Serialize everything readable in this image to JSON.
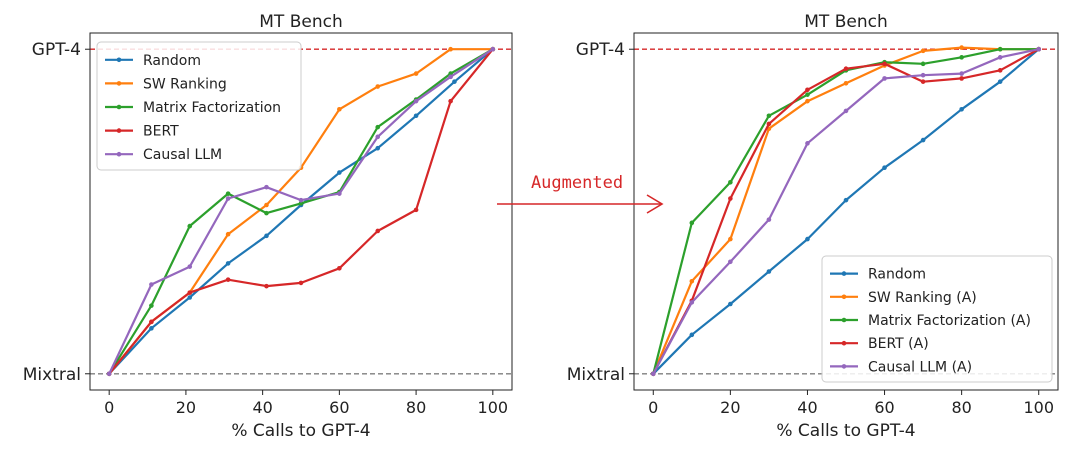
{
  "arrow": {
    "label": "Augmented",
    "color": "#d62728"
  },
  "reference_lines": {
    "top": {
      "label": "GPT-4",
      "color": "#d62728"
    },
    "bottom": {
      "label": "Mixtral",
      "color": "#7f7f7f"
    }
  },
  "chart_data": [
    {
      "type": "line",
      "title": "MT Bench",
      "xlabel": "% Calls to GPT-4",
      "ylabel": "",
      "xlim": [
        -5,
        105
      ],
      "ylim": [
        -0.05,
        1.05
      ],
      "xticks": [
        0,
        20,
        40,
        60,
        80,
        100
      ],
      "yticks": [
        {
          "value": 0,
          "label": "Mixtral"
        },
        {
          "value": 1,
          "label": "GPT-4"
        }
      ],
      "grid": false,
      "legend": "top-left",
      "series": [
        {
          "name": "Random",
          "color": "#1f77b4",
          "x": [
            0,
            11,
            21,
            31,
            41,
            50,
            60,
            70,
            80,
            90,
            100
          ],
          "y": [
            0,
            0.14,
            0.235,
            0.34,
            0.425,
            0.52,
            0.62,
            0.695,
            0.795,
            0.9,
            1.0
          ]
        },
        {
          "name": "SW Ranking",
          "color": "#ff7f0e",
          "x": [
            0,
            11,
            21,
            31,
            41,
            50,
            60,
            70,
            80,
            89,
            100
          ],
          "y": [
            0,
            0.16,
            0.25,
            0.43,
            0.52,
            0.635,
            0.815,
            0.885,
            0.925,
            1.0,
            1.0
          ]
        },
        {
          "name": "Matrix Factorization",
          "color": "#2ca02c",
          "x": [
            0,
            11,
            21,
            31,
            41,
            50,
            60,
            70,
            80,
            89,
            100
          ],
          "y": [
            0,
            0.21,
            0.455,
            0.555,
            0.495,
            0.525,
            0.56,
            0.76,
            0.845,
            0.925,
            1.0
          ]
        },
        {
          "name": "BERT",
          "color": "#d62728",
          "x": [
            0,
            11,
            21,
            31,
            41,
            50,
            60,
            70,
            80,
            89,
            100
          ],
          "y": [
            0,
            0.16,
            0.25,
            0.29,
            0.27,
            0.28,
            0.325,
            0.44,
            0.505,
            0.84,
            1.0
          ]
        },
        {
          "name": "Causal LLM",
          "color": "#9467bd",
          "x": [
            0,
            11,
            21,
            31,
            41,
            50,
            60,
            70,
            80,
            89,
            100
          ],
          "y": [
            0,
            0.275,
            0.33,
            0.54,
            0.575,
            0.535,
            0.555,
            0.73,
            0.84,
            0.915,
            1.0
          ]
        }
      ]
    },
    {
      "type": "line",
      "title": "MT Bench",
      "xlabel": "% Calls to GPT-4",
      "ylabel": "",
      "xlim": [
        -5,
        105
      ],
      "ylim": [
        -0.05,
        1.05
      ],
      "xticks": [
        0,
        20,
        40,
        60,
        80,
        100
      ],
      "yticks": [
        {
          "value": 0,
          "label": "Mixtral"
        },
        {
          "value": 1,
          "label": "GPT-4"
        }
      ],
      "grid": false,
      "legend": "bottom-right",
      "series": [
        {
          "name": "Random",
          "color": "#1f77b4",
          "x": [
            0,
            10,
            20,
            30,
            40,
            50,
            60,
            70,
            80,
            90,
            100
          ],
          "y": [
            0,
            0.12,
            0.215,
            0.315,
            0.415,
            0.535,
            0.635,
            0.72,
            0.815,
            0.9,
            1.0
          ]
        },
        {
          "name": "SW Ranking (A)",
          "color": "#ff7f0e",
          "x": [
            0,
            10,
            20,
            30,
            40,
            50,
            60,
            70,
            80,
            90,
            100
          ],
          "y": [
            0,
            0.285,
            0.415,
            0.755,
            0.84,
            0.895,
            0.95,
            0.995,
            1.005,
            1.0,
            1.0
          ]
        },
        {
          "name": "Matrix Factorization (A)",
          "color": "#2ca02c",
          "x": [
            0,
            10,
            20,
            30,
            40,
            50,
            60,
            70,
            80,
            90,
            100
          ],
          "y": [
            0,
            0.465,
            0.59,
            0.795,
            0.86,
            0.935,
            0.96,
            0.955,
            0.975,
            1.0,
            1.0
          ]
        },
        {
          "name": "BERT (A)",
          "color": "#d62728",
          "x": [
            0,
            10,
            20,
            30,
            40,
            50,
            60,
            70,
            80,
            90,
            100
          ],
          "y": [
            0,
            0.225,
            0.54,
            0.77,
            0.875,
            0.94,
            0.955,
            0.9,
            0.91,
            0.935,
            1.0
          ]
        },
        {
          "name": "Causal LLM (A)",
          "color": "#9467bd",
          "x": [
            0,
            10,
            20,
            30,
            40,
            50,
            60,
            70,
            80,
            90,
            100
          ],
          "y": [
            0,
            0.22,
            0.345,
            0.475,
            0.71,
            0.81,
            0.91,
            0.92,
            0.925,
            0.975,
            1.0
          ]
        }
      ]
    }
  ]
}
